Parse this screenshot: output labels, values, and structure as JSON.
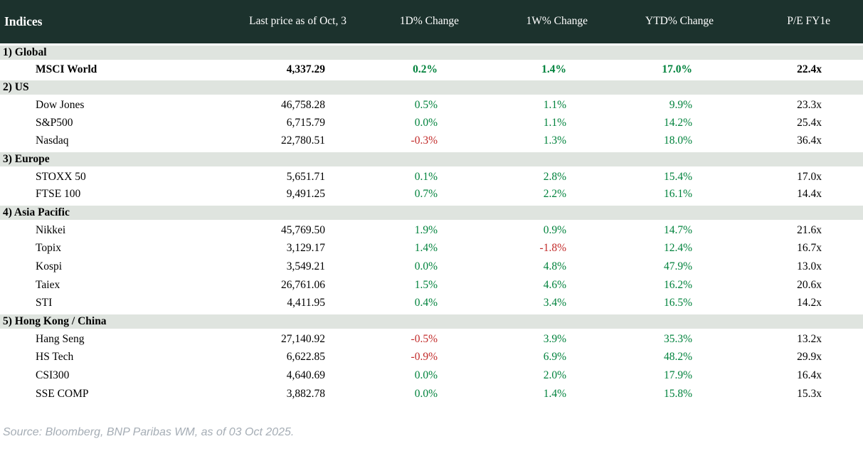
{
  "colors": {
    "header_bg": "#1c322d",
    "band_bg": "#dfe4df",
    "positive": "#00823c",
    "negative": "#c22a29",
    "source_gray": "#a5adb5"
  },
  "chart_data": {
    "type": "table",
    "title": "Indices",
    "columns": [
      "Indices",
      "Last price as of Oct, 3",
      "1D% Change",
      "1W% Change",
      "YTD% Change",
      "P/E FY1e"
    ],
    "sections": [
      {
        "label": "1) Global",
        "rows": [
          {
            "bold": true,
            "cells": [
              "MSCI World",
              "4,337.29",
              "0.2%",
              "1.4%",
              "17.0%",
              "22.4x"
            ]
          }
        ]
      },
      {
        "label": "2) US",
        "rows": [
          {
            "cells": [
              "Dow Jones",
              "46,758.28",
              "0.5%",
              "1.1%",
              "9.9%",
              "23.3x"
            ]
          },
          {
            "cells": [
              "S&P500",
              "6,715.79",
              "0.0%",
              "1.1%",
              "14.2%",
              "25.4x"
            ]
          },
          {
            "cells": [
              "Nasdaq",
              "22,780.51",
              "-0.3%",
              "1.3%",
              "18.0%",
              "36.4x"
            ]
          }
        ]
      },
      {
        "label": "3) Europe",
        "rows": [
          {
            "cells": [
              "STOXX 50",
              "5,651.71",
              "0.1%",
              "2.8%",
              "15.4%",
              "17.0x"
            ]
          },
          {
            "cells": [
              "FTSE 100",
              "9,491.25",
              "0.7%",
              "2.2%",
              "16.1%",
              "14.4x"
            ]
          }
        ]
      },
      {
        "label": "4) Asia Pacific",
        "rows": [
          {
            "cells": [
              "Nikkei",
              "45,769.50",
              "1.9%",
              "0.9%",
              "14.7%",
              "21.6x"
            ]
          },
          {
            "cells": [
              "Topix",
              "3,129.17",
              "1.4%",
              "-1.8%",
              "12.4%",
              "16.7x"
            ]
          },
          {
            "cells": [
              "Kospi",
              "3,549.21",
              "0.0%",
              "4.8%",
              "47.9%",
              "13.0x"
            ]
          },
          {
            "cells": [
              "Taiex",
              "26,761.06",
              "1.5%",
              "4.6%",
              "16.2%",
              "20.6x"
            ]
          },
          {
            "cells": [
              "STI",
              "4,411.95",
              "0.4%",
              "3.4%",
              "16.5%",
              "14.2x"
            ]
          }
        ]
      },
      {
        "label": "5) Hong Kong / China",
        "rows": [
          {
            "cells": [
              "Hang Seng",
              "27,140.92",
              "-0.5%",
              "3.9%",
              "35.3%",
              "13.2x"
            ]
          },
          {
            "cells": [
              "HS Tech",
              "6,622.85",
              "-0.9%",
              "6.9%",
              "48.2%",
              "29.9x"
            ]
          },
          {
            "cells": [
              "CSI300",
              "4,640.69",
              "0.0%",
              "2.0%",
              "17.9%",
              "16.4x"
            ]
          },
          {
            "cells": [
              "SSE COMP",
              "3,882.78",
              "0.0%",
              "1.4%",
              "15.8%",
              "15.3x"
            ]
          }
        ]
      }
    ]
  },
  "footer": {
    "source": "Source: Bloomberg, BNP Paribas WM, as of 03 Oct 2025."
  }
}
